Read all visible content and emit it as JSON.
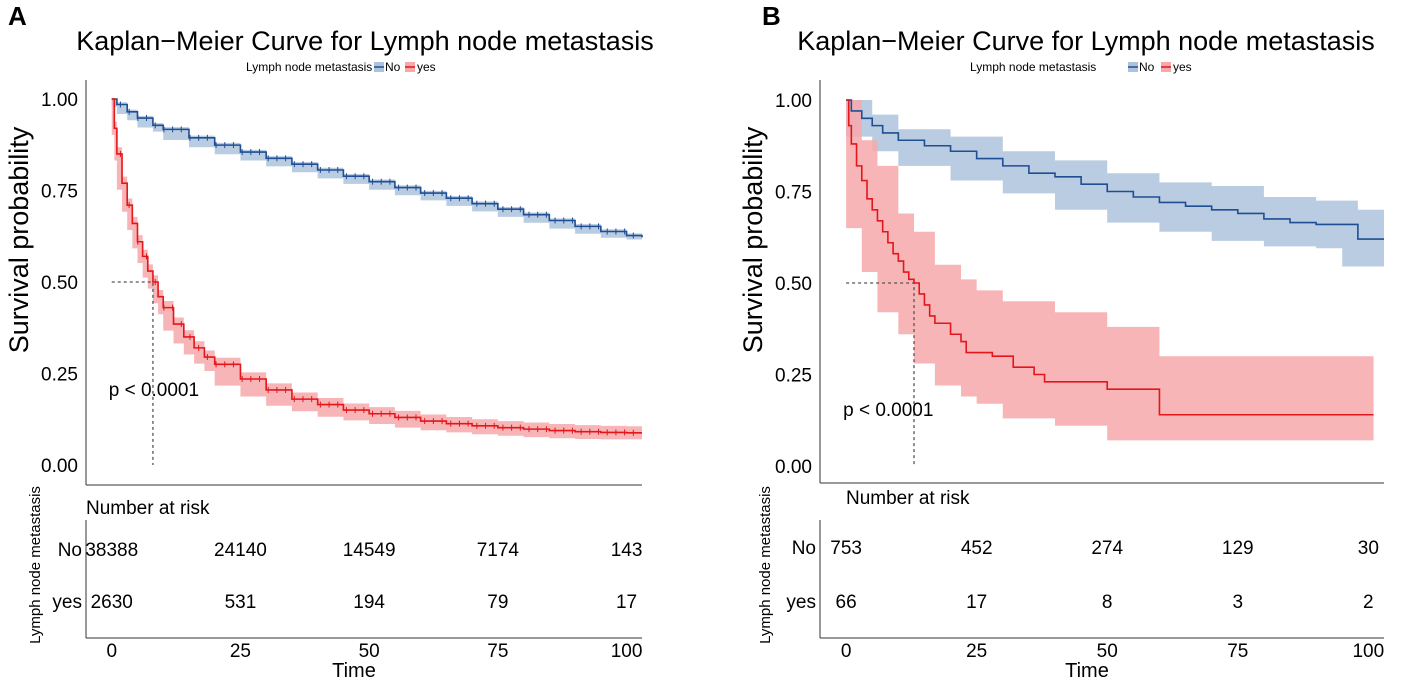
{
  "colors": {
    "no": "#1f4e94",
    "no_ci": "#adc3dc",
    "yes": "#e3161b",
    "yes_ci": "#f7a8aa",
    "median_line": "#555555"
  },
  "chart_data": [
    {
      "panel": "A",
      "type": "line",
      "title": "Kaplan−Meier Curve for Lymph node metastasis",
      "legend": {
        "title": "Lymph node metastasis",
        "entries": [
          "No",
          "yes"
        ],
        "placement": "top-center"
      },
      "xlabel": "Time",
      "ylabel": "Survival probability",
      "xlim": [
        -5,
        103
      ],
      "ylim": [
        0,
        1
      ],
      "x_ticks": [
        "0",
        "25",
        "50",
        "75",
        "100"
      ],
      "y_ticks": [
        "0.00",
        "0.25",
        "0.50",
        "0.75",
        "1.00"
      ],
      "pvalue": "p < 0.0001",
      "median": {
        "group": "yes",
        "time": 8
      },
      "series": [
        {
          "name": "No",
          "ci_halfwidth": 0.006,
          "points": [
            [
              0,
              1.0
            ],
            [
              1,
              0.985
            ],
            [
              3,
              0.965
            ],
            [
              5,
              0.948
            ],
            [
              8,
              0.928
            ],
            [
              10,
              0.917
            ],
            [
              15,
              0.894
            ],
            [
              20,
              0.874
            ],
            [
              25,
              0.855
            ],
            [
              30,
              0.838
            ],
            [
              35,
              0.822
            ],
            [
              40,
              0.806
            ],
            [
              45,
              0.789
            ],
            [
              50,
              0.774
            ],
            [
              55,
              0.758
            ],
            [
              60,
              0.743
            ],
            [
              65,
              0.729
            ],
            [
              70,
              0.714
            ],
            [
              75,
              0.699
            ],
            [
              80,
              0.684
            ],
            [
              85,
              0.668
            ],
            [
              90,
              0.652
            ],
            [
              95,
              0.638
            ],
            [
              100,
              0.627
            ],
            [
              103,
              0.622
            ]
          ]
        },
        {
          "name": "yes",
          "ci_halfwidth": 0.018,
          "points": [
            [
              0,
              1.0
            ],
            [
              0.5,
              0.92
            ],
            [
              1,
              0.85
            ],
            [
              2,
              0.77
            ],
            [
              3,
              0.71
            ],
            [
              4,
              0.66
            ],
            [
              5,
              0.61
            ],
            [
              6,
              0.57
            ],
            [
              7,
              0.53
            ],
            [
              8,
              0.5
            ],
            [
              9,
              0.46
            ],
            [
              10,
              0.43
            ],
            [
              12,
              0.385
            ],
            [
              14,
              0.35
            ],
            [
              16,
              0.32
            ],
            [
              18,
              0.295
            ],
            [
              20,
              0.275
            ],
            [
              25,
              0.235
            ],
            [
              30,
              0.205
            ],
            [
              35,
              0.18
            ],
            [
              40,
              0.165
            ],
            [
              45,
              0.15
            ],
            [
              50,
              0.14
            ],
            [
              55,
              0.13
            ],
            [
              60,
              0.12
            ],
            [
              65,
              0.113
            ],
            [
              70,
              0.107
            ],
            [
              75,
              0.102
            ],
            [
              80,
              0.098
            ],
            [
              85,
              0.094
            ],
            [
              90,
              0.091
            ],
            [
              95,
              0.089
            ],
            [
              100,
              0.088
            ],
            [
              103,
              0.088
            ]
          ]
        }
      ],
      "risk_table": {
        "title": "Number at risk",
        "ylabel": "Lymph node metastasis",
        "rows": [
          {
            "group": "No",
            "values": [
              "38388",
              "24140",
              "14549",
              "7174",
              "143"
            ]
          },
          {
            "group": "yes",
            "values": [
              "2630",
              "531",
              "194",
              "79",
              "17"
            ]
          }
        ]
      }
    },
    {
      "panel": "B",
      "type": "line",
      "title": "Kaplan−Meier Curve for Lymph node metastasis",
      "legend": {
        "title": "Lymph node metastasis",
        "entries": [
          "No",
          "yes"
        ],
        "placement": "top-center"
      },
      "xlabel": "Time",
      "ylabel": "Survival probability",
      "xlim": [
        -5,
        103
      ],
      "ylim": [
        0,
        1
      ],
      "x_ticks": [
        "0",
        "25",
        "50",
        "75",
        "100"
      ],
      "y_ticks": [
        "0.00",
        "0.25",
        "0.50",
        "0.75",
        "1.00"
      ],
      "pvalue": "p < 0.0001",
      "median": {
        "group": "yes",
        "time": 13
      },
      "series": [
        {
          "name": "No",
          "points": [
            [
              0,
              1.0
            ],
            [
              1,
              0.97
            ],
            [
              3,
              0.95
            ],
            [
              5,
              0.93
            ],
            [
              7,
              0.91
            ],
            [
              10,
              0.89
            ],
            [
              15,
              0.875
            ],
            [
              20,
              0.86
            ],
            [
              25,
              0.84
            ],
            [
              30,
              0.82
            ],
            [
              35,
              0.8
            ],
            [
              40,
              0.79
            ],
            [
              45,
              0.77
            ],
            [
              50,
              0.75
            ],
            [
              55,
              0.735
            ],
            [
              60,
              0.72
            ],
            [
              65,
              0.71
            ],
            [
              70,
              0.7
            ],
            [
              75,
              0.69
            ],
            [
              80,
              0.675
            ],
            [
              85,
              0.665
            ],
            [
              90,
              0.66
            ],
            [
              95,
              0.66
            ],
            [
              98,
              0.62
            ],
            [
              103,
              0.62
            ]
          ],
          "ci_lower": [
            [
              0,
              0.98
            ],
            [
              5,
              0.9
            ],
            [
              10,
              0.86
            ],
            [
              20,
              0.82
            ],
            [
              30,
              0.78
            ],
            [
              40,
              0.745
            ],
            [
              50,
              0.7
            ],
            [
              60,
              0.665
            ],
            [
              70,
              0.64
            ],
            [
              80,
              0.615
            ],
            [
              90,
              0.6
            ],
            [
              95,
              0.595
            ],
            [
              98,
              0.545
            ],
            [
              103,
              0.545
            ]
          ],
          "ci_upper": [
            [
              0,
              1.0
            ],
            [
              5,
              0.96
            ],
            [
              10,
              0.92
            ],
            [
              20,
              0.9
            ],
            [
              30,
              0.86
            ],
            [
              40,
              0.835
            ],
            [
              50,
              0.8
            ],
            [
              60,
              0.775
            ],
            [
              70,
              0.765
            ],
            [
              80,
              0.735
            ],
            [
              90,
              0.725
            ],
            [
              95,
              0.725
            ],
            [
              98,
              0.7
            ],
            [
              103,
              0.7
            ]
          ]
        },
        {
          "name": "yes",
          "points": [
            [
              0,
              1.0
            ],
            [
              0.5,
              0.93
            ],
            [
              1,
              0.88
            ],
            [
              2,
              0.82
            ],
            [
              3,
              0.78
            ],
            [
              4,
              0.73
            ],
            [
              5,
              0.7
            ],
            [
              6,
              0.67
            ],
            [
              7,
              0.64
            ],
            [
              8,
              0.61
            ],
            [
              9,
              0.58
            ],
            [
              10,
              0.56
            ],
            [
              11,
              0.53
            ],
            [
              12,
              0.51
            ],
            [
              13,
              0.5
            ],
            [
              14,
              0.47
            ],
            [
              15,
              0.44
            ],
            [
              16,
              0.41
            ],
            [
              17,
              0.39
            ],
            [
              20,
              0.36
            ],
            [
              22,
              0.34
            ],
            [
              23,
              0.31
            ],
            [
              25,
              0.31
            ],
            [
              28,
              0.3
            ],
            [
              32,
              0.27
            ],
            [
              36,
              0.25
            ],
            [
              38,
              0.23
            ],
            [
              42,
              0.23
            ],
            [
              50,
              0.21
            ],
            [
              60,
              0.14
            ],
            [
              75,
              0.14
            ],
            [
              90,
              0.14
            ],
            [
              101,
              0.14
            ]
          ],
          "ci_lower": [
            [
              0,
              0.9
            ],
            [
              3,
              0.65
            ],
            [
              6,
              0.53
            ],
            [
              10,
              0.42
            ],
            [
              13,
              0.36
            ],
            [
              17,
              0.28
            ],
            [
              22,
              0.22
            ],
            [
              25,
              0.19
            ],
            [
              30,
              0.17
            ],
            [
              40,
              0.13
            ],
            [
              50,
              0.11
            ],
            [
              60,
              0.07
            ],
            [
              101,
              0.07
            ]
          ],
          "ci_upper": [
            [
              0,
              1.0
            ],
            [
              3,
              0.89
            ],
            [
              6,
              0.82
            ],
            [
              10,
              0.69
            ],
            [
              13,
              0.64
            ],
            [
              17,
              0.55
            ],
            [
              22,
              0.51
            ],
            [
              25,
              0.48
            ],
            [
              30,
              0.45
            ],
            [
              40,
              0.42
            ],
            [
              50,
              0.38
            ],
            [
              60,
              0.3
            ],
            [
              101,
              0.3
            ]
          ]
        }
      ],
      "risk_table": {
        "title": "Number at risk",
        "ylabel": "Lymph node metastasis",
        "rows": [
          {
            "group": "No",
            "values": [
              "753",
              "452",
              "274",
              "129",
              "30"
            ]
          },
          {
            "group": "yes",
            "values": [
              "66",
              "17",
              "8",
              "3",
              "2"
            ]
          }
        ]
      }
    }
  ]
}
